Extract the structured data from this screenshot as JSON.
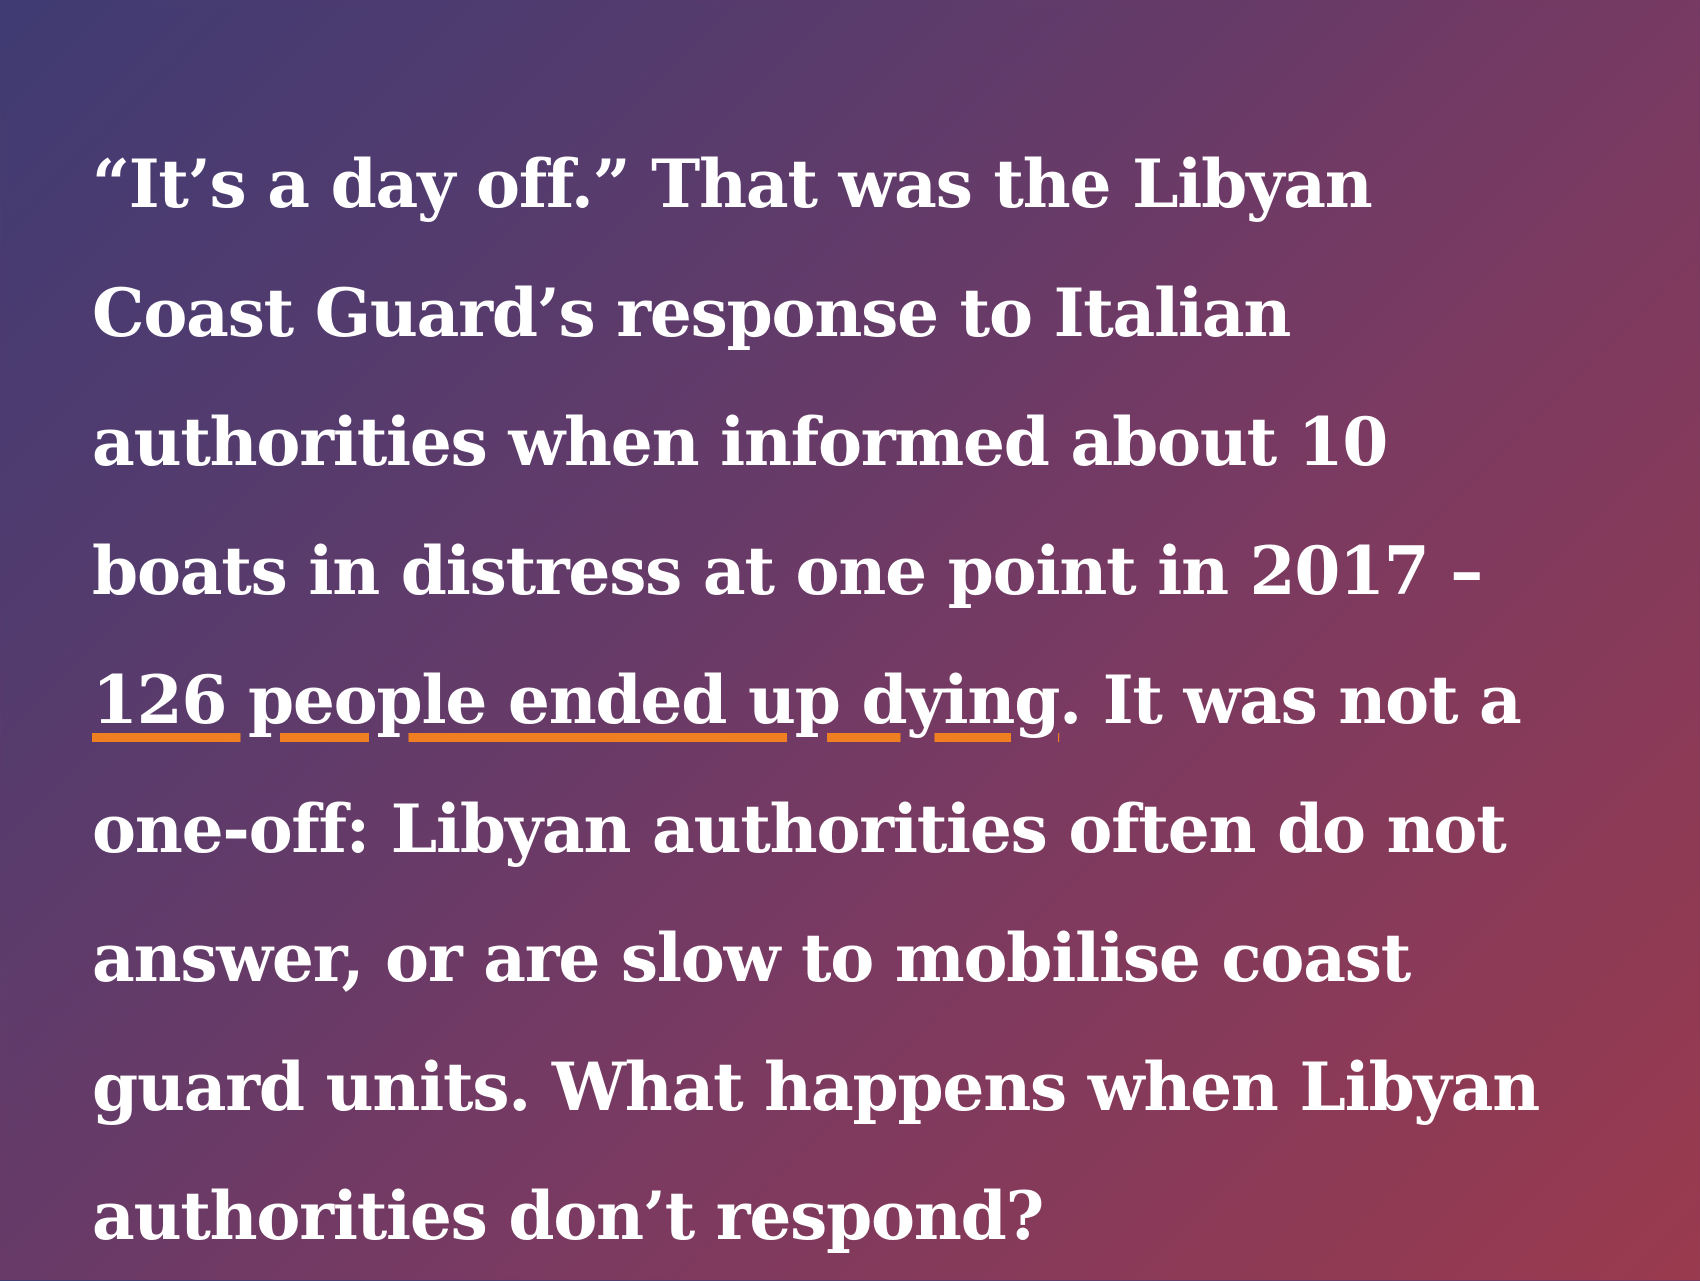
{
  "article": {
    "text_before": "“It’s a day off.” That was the Libyan Coast Guard’s response to Italian authorities when informed about 10 boats in distress at one point in 2017 – ",
    "highlight": "126 people ended up dying",
    "text_after": ". It was not a one-off: Libyan authorities often do not answer, or are slow to mobilise coast guard units. What happens when Libyan authorities don’t respond?"
  },
  "colors": {
    "text": "#ffffff",
    "underline": "#f07f22",
    "background_start": "#3f3b73",
    "background_end": "#9a3a4e"
  }
}
